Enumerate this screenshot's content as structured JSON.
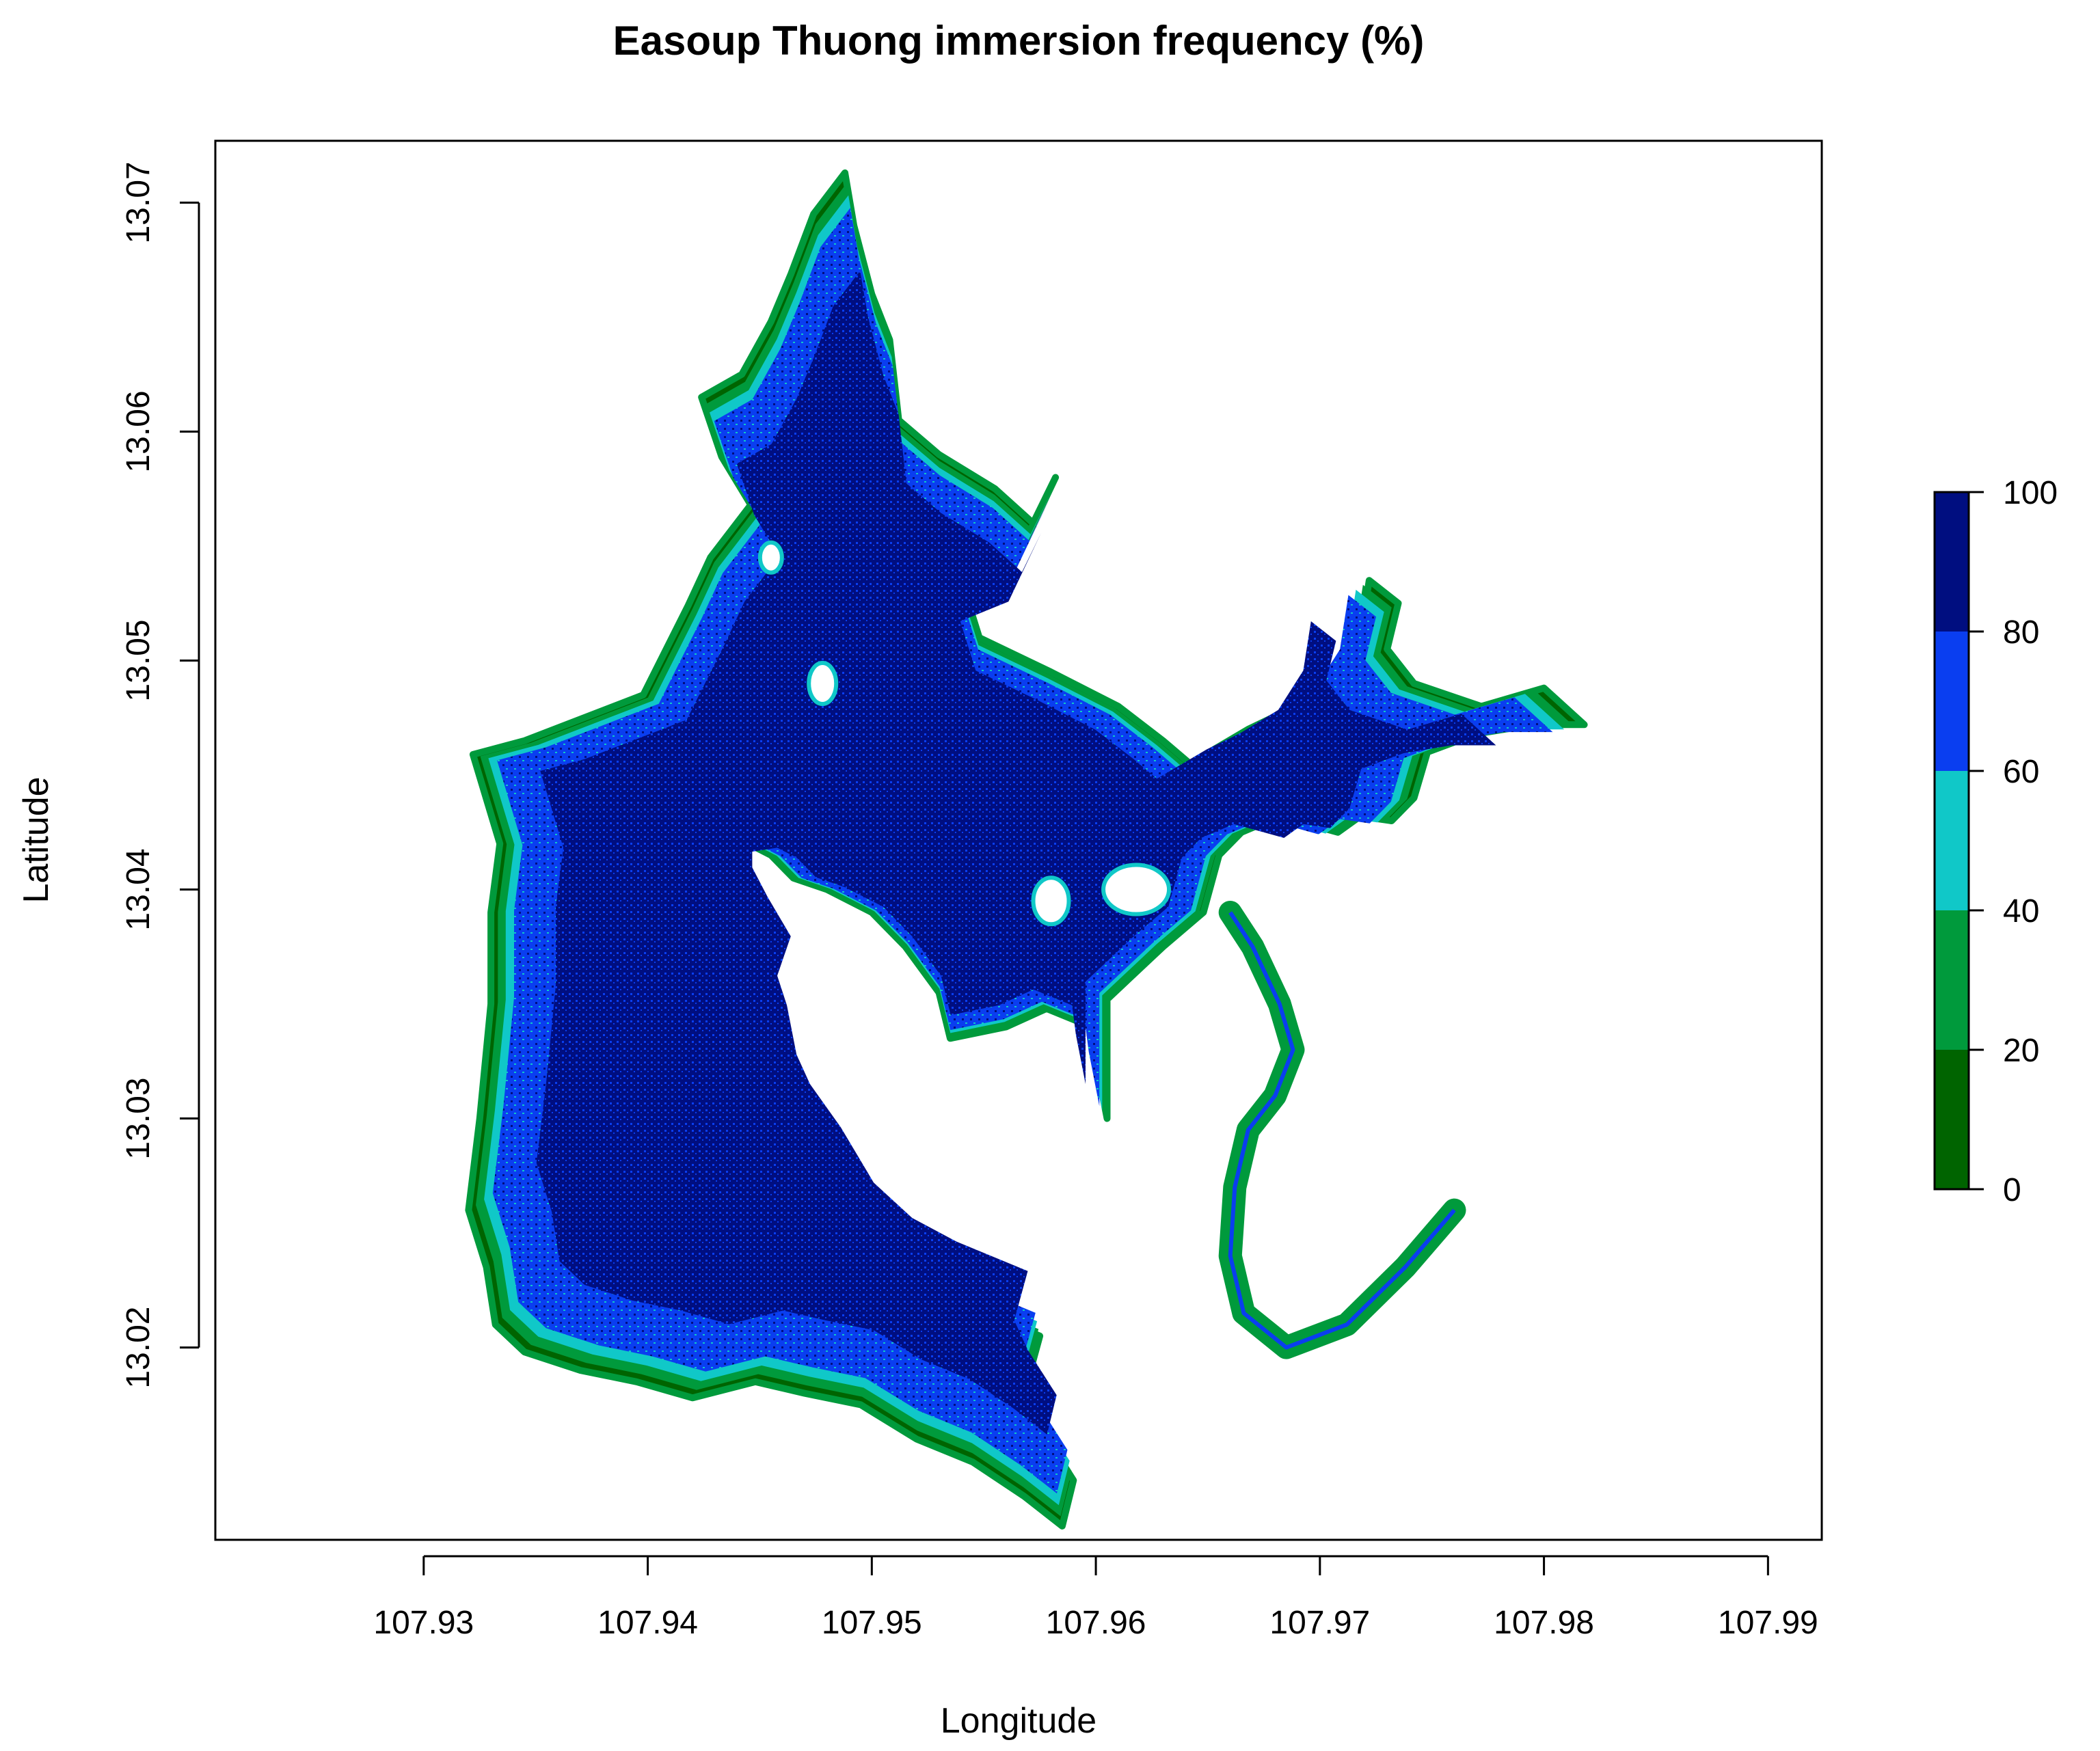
{
  "title": "Easoup Thuong immersion frequency (%)",
  "x_axis": {
    "label": "Longitude",
    "ticks": [
      {
        "value": 107.93,
        "label": "107.93"
      },
      {
        "value": 107.94,
        "label": "107.94"
      },
      {
        "value": 107.95,
        "label": "107.95"
      },
      {
        "value": 107.96,
        "label": "107.96"
      },
      {
        "value": 107.97,
        "label": "107.97"
      },
      {
        "value": 107.98,
        "label": "107.98"
      },
      {
        "value": 107.99,
        "label": "107.99"
      }
    ],
    "range": [
      107.9207,
      107.9924
    ]
  },
  "y_axis": {
    "label": "Latitude",
    "ticks": [
      {
        "value": 13.02,
        "label": "13.02"
      },
      {
        "value": 13.03,
        "label": "13.03"
      },
      {
        "value": 13.04,
        "label": "13.04"
      },
      {
        "value": 13.05,
        "label": "13.05"
      },
      {
        "value": 13.06,
        "label": "13.06"
      },
      {
        "value": 13.07,
        "label": "13.07"
      }
    ],
    "range": [
      13.0116,
      13.0727
    ]
  },
  "legend": {
    "placement": "right",
    "ticks": [
      {
        "value": 0,
        "label": "0"
      },
      {
        "value": 20,
        "label": "20"
      },
      {
        "value": 40,
        "label": "40"
      },
      {
        "value": 60,
        "label": "60"
      },
      {
        "value": 80,
        "label": "80"
      },
      {
        "value": 100,
        "label": "100"
      }
    ],
    "classes": [
      {
        "from": 0,
        "to": 20,
        "color": "#006400"
      },
      {
        "from": 20,
        "to": 40,
        "color": "#009a3c"
      },
      {
        "from": 40,
        "to": 60,
        "color": "#10c8c8"
      },
      {
        "from": 60,
        "to": 80,
        "color": "#0a3ef0"
      },
      {
        "from": 80,
        "to": 100,
        "color": "#000e80"
      }
    ]
  },
  "colors": {
    "deep": "#000e80",
    "high": "#0a3ef0",
    "mid": "#10c8c8",
    "low": "#009a3c",
    "dry": "#006400"
  },
  "map": {
    "reservoir_main": [
      [
        107.9322,
        13.0459
      ],
      [
        107.9345,
        13.0465
      ],
      [
        107.9398,
        13.0485
      ],
      [
        107.9418,
        13.0524
      ],
      [
        107.9428,
        13.0545
      ],
      [
        107.9446,
        13.0568
      ],
      [
        107.9433,
        13.0589
      ],
      [
        107.9424,
        13.0615
      ],
      [
        107.9442,
        13.0625
      ],
      [
        107.9455,
        13.0648
      ],
      [
        107.9464,
        13.0669
      ],
      [
        107.9474,
        13.0695
      ],
      [
        107.9488,
        13.0713
      ],
      [
        107.9492,
        13.069
      ],
      [
        107.95,
        13.066
      ],
      [
        107.9508,
        13.064
      ],
      [
        107.9512,
        13.0605
      ],
      [
        107.953,
        13.059
      ],
      [
        107.9555,
        13.0575
      ],
      [
        107.9572,
        13.056
      ],
      [
        107.9582,
        13.058
      ],
      [
        107.9565,
        13.0545
      ],
      [
        107.954,
        13.0535
      ],
      [
        107.9548,
        13.051
      ],
      [
        107.958,
        13.0495
      ],
      [
        107.961,
        13.048
      ],
      [
        107.963,
        13.0465
      ],
      [
        107.9642,
        13.0455
      ],
      [
        107.9668,
        13.047
      ],
      [
        107.9685,
        13.0478
      ],
      [
        107.9705,
        13.049
      ],
      [
        107.9718,
        13.051
      ],
      [
        107.9722,
        13.0535
      ],
      [
        107.9735,
        13.0525
      ],
      [
        107.973,
        13.0505
      ],
      [
        107.9742,
        13.049
      ],
      [
        107.9772,
        13.048
      ],
      [
        107.98,
        13.0488
      ],
      [
        107.9818,
        13.0472
      ],
      [
        107.9795,
        13.0472
      ],
      [
        107.977,
        13.0468
      ],
      [
        107.9748,
        13.046
      ],
      [
        107.9742,
        13.044
      ],
      [
        107.9732,
        13.043
      ],
      [
        107.9718,
        13.0432
      ],
      [
        107.9708,
        13.0425
      ],
      [
        107.9682,
        13.0432
      ],
      [
        107.9665,
        13.0425
      ],
      [
        107.9655,
        13.0415
      ],
      [
        107.9648,
        13.039
      ],
      [
        107.963,
        13.0375
      ],
      [
        107.9605,
        13.0352
      ],
      [
        107.9605,
        13.03
      ],
      [
        107.96,
        13.0325
      ],
      [
        107.9598,
        13.034
      ],
      [
        107.9578,
        13.0348
      ],
      [
        107.956,
        13.034
      ],
      [
        107.9535,
        13.0335
      ],
      [
        107.953,
        13.0355
      ],
      [
        107.9515,
        13.0375
      ],
      [
        107.95,
        13.039
      ],
      [
        107.948,
        13.04
      ],
      [
        107.9465,
        13.0405
      ],
      [
        107.9455,
        13.0415
      ],
      [
        107.9445,
        13.042
      ],
      [
        107.9432,
        13.0418
      ],
      [
        107.9432,
        13.041
      ],
      [
        107.944,
        13.0395
      ],
      [
        107.9452,
        13.0375
      ],
      [
        107.9445,
        13.0355
      ],
      [
        107.945,
        13.034
      ],
      [
        107.9455,
        13.0315
      ],
      [
        107.9462,
        13.03
      ],
      [
        107.9478,
        13.0278
      ],
      [
        107.9495,
        13.025
      ],
      [
        107.9515,
        13.0232
      ],
      [
        107.9538,
        13.022
      ],
      [
        107.9575,
        13.0205
      ],
      [
        107.9568,
        13.018
      ],
      [
        107.9575,
        13.0165
      ],
      [
        107.959,
        13.0142
      ],
      [
        107.9585,
        13.0122
      ],
      [
        107.9568,
        13.0135
      ],
      [
        107.9545,
        13.015
      ],
      [
        107.952,
        13.016
      ],
      [
        107.9495,
        13.0175
      ],
      [
        107.947,
        13.018
      ],
      [
        107.9448,
        13.0185
      ],
      [
        107.942,
        13.0178
      ],
      [
        107.9395,
        13.0185
      ],
      [
        107.937,
        13.019
      ],
      [
        107.9345,
        13.0198
      ],
      [
        107.9332,
        13.021
      ],
      [
        107.9328,
        13.0235
      ],
      [
        107.932,
        13.026
      ],
      [
        107.9325,
        13.03
      ],
      [
        107.933,
        13.035
      ],
      [
        107.933,
        13.039
      ],
      [
        107.9334,
        13.042
      ],
      [
        107.9322,
        13.0459
      ]
    ],
    "river_channel": [
      [
        107.966,
        13.039
      ],
      [
        107.967,
        13.0375
      ],
      [
        107.9682,
        13.035
      ],
      [
        107.9688,
        13.033
      ],
      [
        107.968,
        13.031
      ],
      [
        107.9668,
        13.0295
      ],
      [
        107.9662,
        13.027
      ],
      [
        107.966,
        13.024
      ],
      [
        107.9666,
        13.0215
      ],
      [
        107.9685,
        13.02
      ],
      [
        107.9712,
        13.021
      ],
      [
        107.9738,
        13.0235
      ],
      [
        107.976,
        13.026
      ]
    ]
  }
}
